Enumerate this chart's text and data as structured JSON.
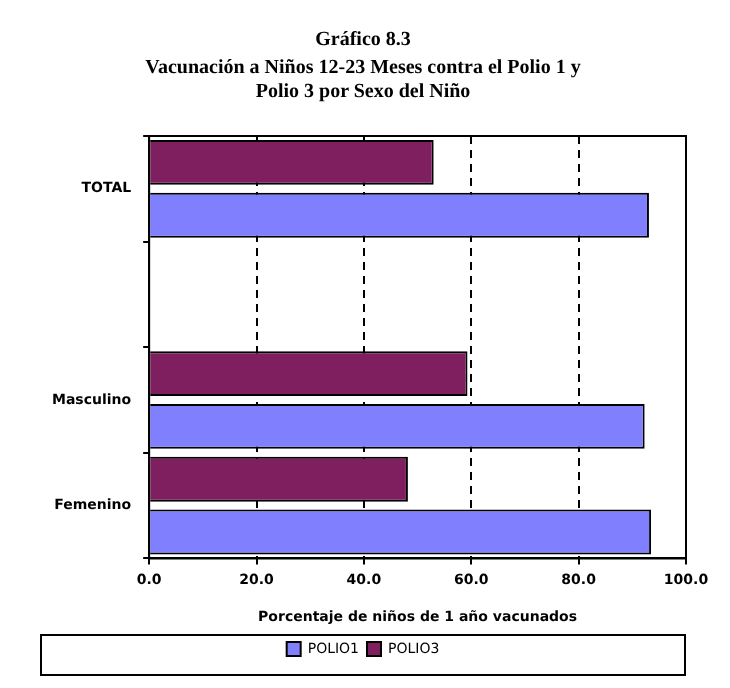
{
  "chart_data": {
    "type": "bar",
    "orientation": "horizontal",
    "title": "Gráfico 8.3",
    "subtitle": "Vacunación a Niños 12-23 Meses contra el Polio 1 y\nPolio 3 por Sexo del Niño",
    "xlabel": "Porcentaje de niños de 1 año vacunados",
    "categories": [
      "TOTAL",
      null,
      "Masculino",
      "Femenino"
    ],
    "series": [
      {
        "name": "POLIO1",
        "color": "#8080ff",
        "values": [
          93.1,
          null,
          92.3,
          93.5
        ]
      },
      {
        "name": "POLIO3",
        "color": "#7f1f5f",
        "values": [
          53.0,
          null,
          59.3,
          48.2
        ]
      }
    ],
    "xlim": [
      0,
      100
    ],
    "xticks": [
      {
        "value": 0,
        "label": "0.0"
      },
      {
        "value": 20,
        "label": "20.0"
      },
      {
        "value": 40,
        "label": "40.0"
      },
      {
        "value": 60,
        "label": "60.0"
      },
      {
        "value": 80,
        "label": "80.0"
      },
      {
        "value": 100,
        "label": "100.0"
      }
    ],
    "grid": "x",
    "legend": "bottom"
  }
}
